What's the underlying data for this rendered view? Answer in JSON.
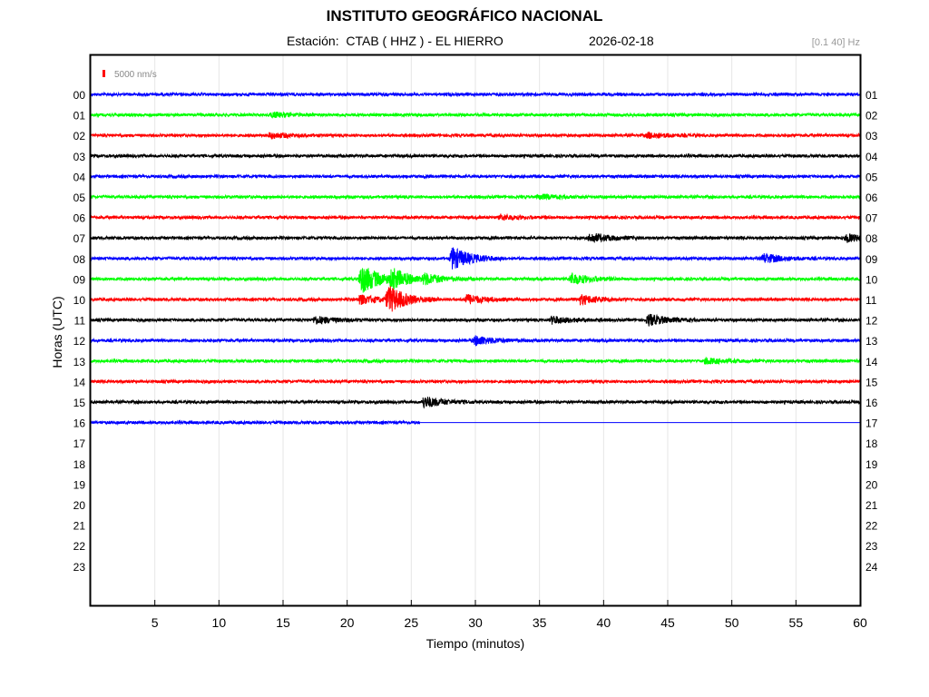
{
  "header": {
    "title": "INSTITUTO GEOGRÁFICO NACIONAL",
    "station": "Estación:  CTAB ( HHZ ) - EL HIERRO",
    "date": "2026-02-18",
    "filter": "[0.1 40] Hz"
  },
  "chart_data": {
    "type": "line",
    "subtype": "helicorder",
    "xlabel": "Tiempo (minutos)",
    "ylabel": "Horas (UTC)",
    "xlim": [
      0,
      60
    ],
    "x_ticks": [
      "5",
      "10",
      "15",
      "20",
      "25",
      "30",
      "35",
      "40",
      "45",
      "50",
      "55",
      "60"
    ],
    "left_hour_labels": [
      "00",
      "01",
      "02",
      "03",
      "04",
      "05",
      "06",
      "07",
      "08",
      "09",
      "10",
      "11",
      "12",
      "13",
      "14",
      "15",
      "16",
      "17",
      "18",
      "19",
      "20",
      "21",
      "22",
      "23"
    ],
    "right_hour_labels": [
      "01",
      "02",
      "03",
      "04",
      "05",
      "06",
      "07",
      "08",
      "09",
      "10",
      "11",
      "12",
      "13",
      "14",
      "15",
      "16",
      "17",
      "18",
      "19",
      "20",
      "21",
      "22",
      "23",
      "24"
    ],
    "grid": "vertical",
    "scale_bar": {
      "label": "5000 nm/s",
      "color": "#ff0000"
    },
    "trace_colors": [
      "#0000ff",
      "#00ff00",
      "#ff0000",
      "#000000"
    ],
    "recorded_hours": 17,
    "last_hour_end_minute": 25.7,
    "events": [
      {
        "hour": 1,
        "minute": 14.2,
        "amp": 2.5
      },
      {
        "hour": 2,
        "minute": 14.0,
        "amp": 3
      },
      {
        "hour": 2,
        "minute": 43.5,
        "amp": 3
      },
      {
        "hour": 5,
        "minute": 35.0,
        "amp": 2.5
      },
      {
        "hour": 6,
        "minute": 32.0,
        "amp": 2.5
      },
      {
        "hour": 7,
        "minute": 39.0,
        "amp": 5
      },
      {
        "hour": 7,
        "minute": 59.0,
        "amp": 4
      },
      {
        "hour": 8,
        "minute": 28.2,
        "amp": 12
      },
      {
        "hour": 8,
        "minute": 52.5,
        "amp": 5
      },
      {
        "hour": 9,
        "minute": 21.1,
        "amp": 16
      },
      {
        "hour": 9,
        "minute": 23.5,
        "amp": 9
      },
      {
        "hour": 9,
        "minute": 26.0,
        "amp": 5
      },
      {
        "hour": 9,
        "minute": 37.5,
        "amp": 6
      },
      {
        "hour": 10,
        "minute": 23.2,
        "amp": 14
      },
      {
        "hour": 10,
        "minute": 21.0,
        "amp": 5
      },
      {
        "hour": 10,
        "minute": 29.3,
        "amp": 5
      },
      {
        "hour": 10,
        "minute": 38.2,
        "amp": 5
      },
      {
        "hour": 11,
        "minute": 17.5,
        "amp": 4
      },
      {
        "hour": 11,
        "minute": 36.0,
        "amp": 4
      },
      {
        "hour": 11,
        "minute": 43.5,
        "amp": 6
      },
      {
        "hour": 12,
        "minute": 30.0,
        "amp": 5
      },
      {
        "hour": 13,
        "minute": 48.0,
        "amp": 3
      },
      {
        "hour": 15,
        "minute": 26.0,
        "amp": 6
      }
    ]
  }
}
